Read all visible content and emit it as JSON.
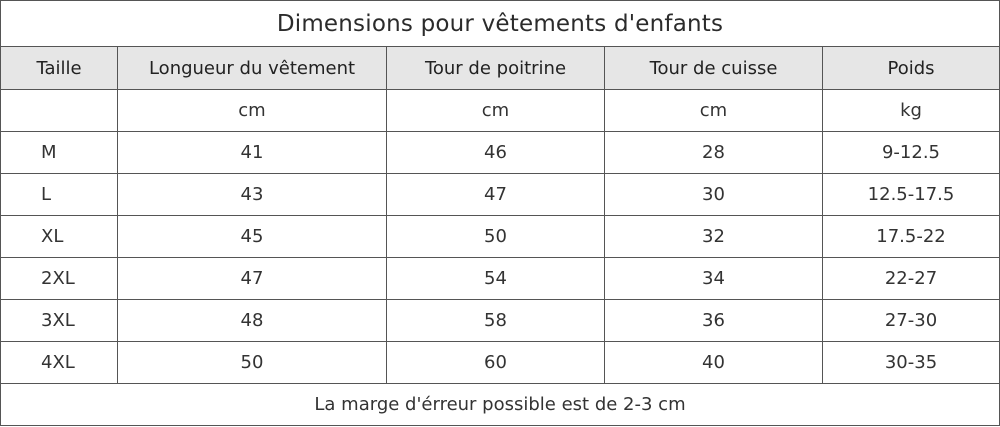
{
  "title": "Dimensions pour vêtements d'enfants",
  "headers": [
    "Taille",
    "Longueur du vêtement",
    "Tour de poitrine",
    "Tour de cuisse",
    "Poids"
  ],
  "units": [
    "",
    "cm",
    "cm",
    "cm",
    "kg"
  ],
  "rows": [
    [
      "M",
      "41",
      "46",
      "28",
      "9-12.5"
    ],
    [
      "L",
      "43",
      "47",
      "30",
      "12.5-17.5"
    ],
    [
      "XL",
      "45",
      "50",
      "32",
      "17.5-22"
    ],
    [
      "2XL",
      "47",
      "54",
      "34",
      "22-27"
    ],
    [
      "3XL",
      "48",
      "58",
      "36",
      "27-30"
    ],
    [
      "4XL",
      "50",
      "60",
      "40",
      "30-35"
    ]
  ],
  "note": "La marge d'érreur possible est de 2-3 cm",
  "colors": {
    "header_background": "#e6e6e6",
    "border": "#555555",
    "text": "#333333"
  }
}
